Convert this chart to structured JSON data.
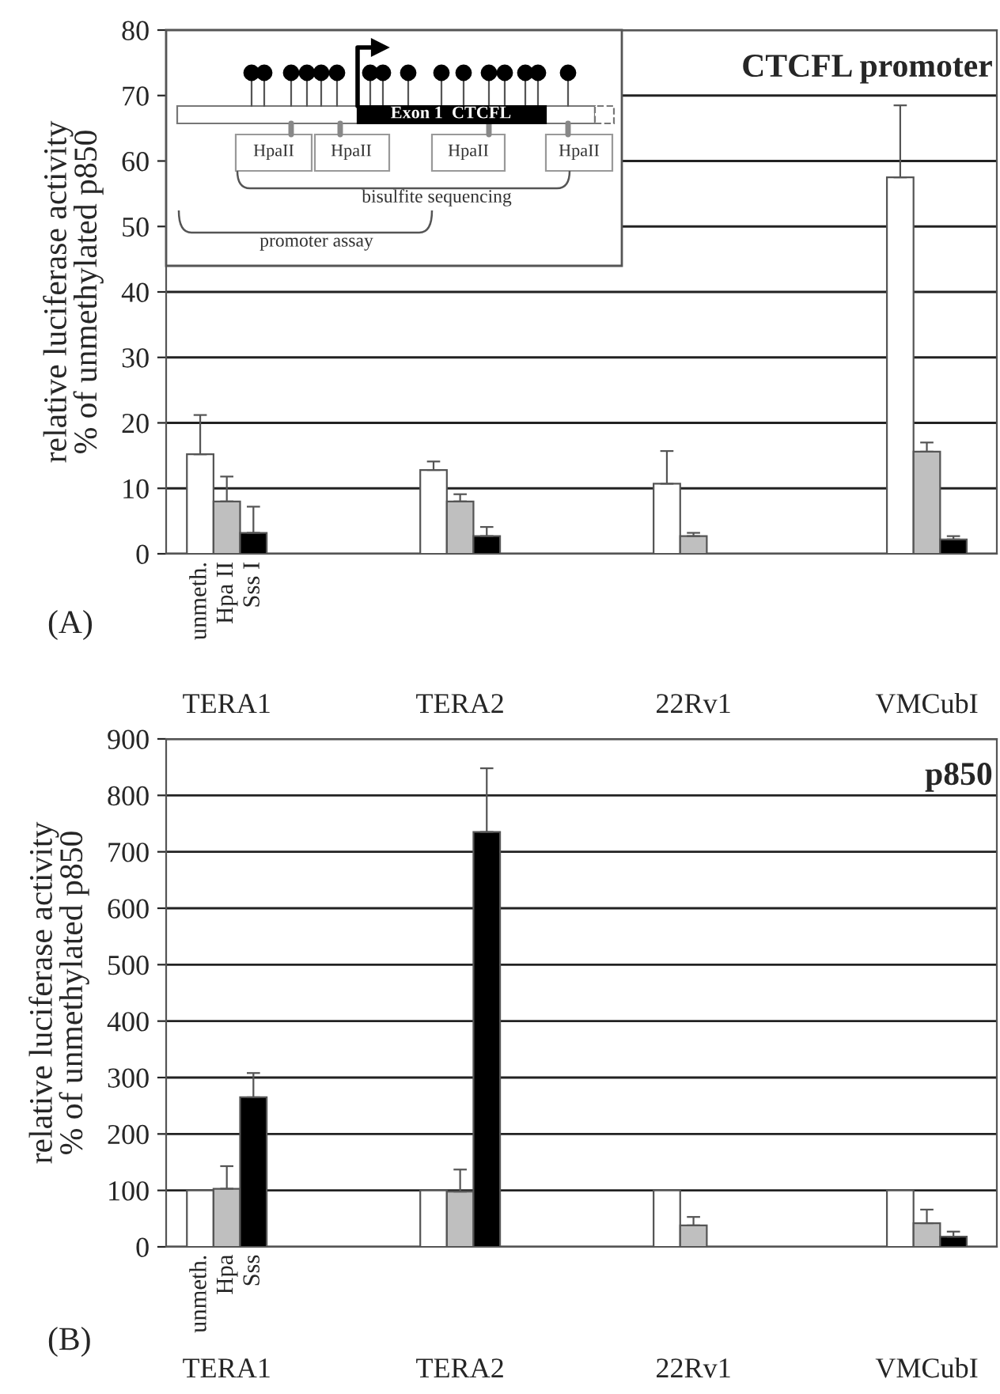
{
  "chart_data": [
    {
      "type": "bar",
      "title": "CTCFL promoter",
      "ylabel": "relative luciferase activity\n% of unmethylated p850",
      "categories": [
        "TERA1",
        "TERA2",
        "22Rv1",
        "VMCubI"
      ],
      "series": [
        {
          "name": "unmeth.",
          "color": "#ffffff",
          "values": [
            15.2,
            12.8,
            10.7,
            57.5
          ],
          "errors": [
            [
              15.2,
              21.2
            ],
            [
              12.8,
              14.1
            ],
            [
              10.7,
              15.7
            ],
            [
              57.5,
              68.5
            ]
          ]
        },
        {
          "name": "Hpa II",
          "color": "#bfbfbf",
          "values": [
            8.0,
            8.0,
            2.7,
            15.6
          ],
          "errors": [
            [
              8.0,
              11.8
            ],
            [
              8.0,
              9.1
            ],
            [
              2.7,
              3.2
            ],
            [
              15.6,
              17.0
            ]
          ]
        },
        {
          "name": "Sss I",
          "color": "#000000",
          "values": [
            3.2,
            2.7,
            null,
            2.2
          ],
          "errors": [
            [
              3.2,
              7.2
            ],
            [
              2.7,
              4.1
            ],
            null,
            [
              2.2,
              2.7
            ]
          ]
        }
      ],
      "ylim": [
        0,
        80
      ],
      "yticks": [
        0,
        10,
        20,
        30,
        40,
        50,
        60,
        70,
        80
      ],
      "grid": "y",
      "annotations": [
        "(A)",
        "Exon 1  CTCFL",
        "HpaII",
        "HpaII",
        "HpaII",
        "HpaII",
        "bisulfite sequencing",
        "promoter assay"
      ]
    },
    {
      "type": "bar",
      "title": "p850",
      "ylabel": "relative luciferase activity\n% of unmethylated p850",
      "categories": [
        "TERA1",
        "TERA2",
        "22Rv1",
        "VMCubI"
      ],
      "series": [
        {
          "name": "unmeth.",
          "color": "#ffffff",
          "values": [
            100,
            100,
            100,
            100
          ]
        },
        {
          "name": "Hpa",
          "color": "#bfbfbf",
          "values": [
            103,
            98,
            38,
            42
          ],
          "errors": [
            [
              103,
              143
            ],
            [
              98,
              137
            ],
            [
              38,
              53
            ],
            [
              42,
              66
            ]
          ]
        },
        {
          "name": "Sss",
          "color": "#000000",
          "values": [
            265,
            735,
            null,
            18
          ],
          "errors": [
            [
              265,
              308
            ],
            [
              735,
              848
            ],
            null,
            [
              18,
              27
            ]
          ]
        }
      ],
      "ylim": [
        0,
        900
      ],
      "yticks": [
        0,
        100,
        200,
        300,
        400,
        500,
        600,
        700,
        800,
        900
      ],
      "grid": "y",
      "annotations": [
        "(B)"
      ]
    }
  ]
}
